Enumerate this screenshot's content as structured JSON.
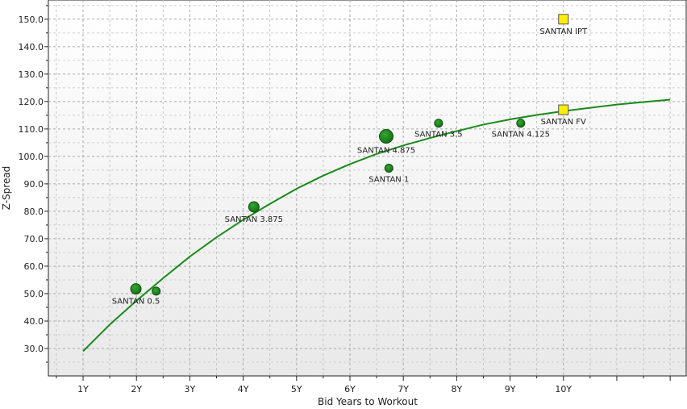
{
  "chart_data": {
    "type": "scatter",
    "xlabel": "Bid Years to Workout",
    "ylabel": "Z-Spread",
    "xlim": [
      0.35,
      12.3
    ],
    "ylim": [
      20,
      157
    ],
    "x_ticks": [
      {
        "value": 1,
        "label": "1Y"
      },
      {
        "value": 2,
        "label": "2Y"
      },
      {
        "value": 3,
        "label": "3Y"
      },
      {
        "value": 4,
        "label": "4Y"
      },
      {
        "value": 5,
        "label": "5Y"
      },
      {
        "value": 6,
        "label": "6Y"
      },
      {
        "value": 7,
        "label": "7Y"
      },
      {
        "value": 8,
        "label": "8Y"
      },
      {
        "value": 9,
        "label": "9Y"
      },
      {
        "value": 10,
        "label": "10Y"
      }
    ],
    "y_ticks": [
      {
        "value": 30,
        "label": "30.0"
      },
      {
        "value": 40,
        "label": "40.0"
      },
      {
        "value": 50,
        "label": "50.0"
      },
      {
        "value": 60,
        "label": "60.0"
      },
      {
        "value": 70,
        "label": "70.0"
      },
      {
        "value": 80,
        "label": "80.0"
      },
      {
        "value": 90,
        "label": "90.0"
      },
      {
        "value": 100,
        "label": "100.0"
      },
      {
        "value": 110,
        "label": "110.0"
      },
      {
        "value": 120,
        "label": "120.0"
      },
      {
        "value": 130,
        "label": "130.0"
      },
      {
        "value": 140,
        "label": "140.0"
      },
      {
        "value": 150,
        "label": "150.0"
      }
    ],
    "grid": true,
    "colors": {
      "bond": "#1a8a1a",
      "curve": "#1a8a1a",
      "new_issue": "#ffee00"
    },
    "bonds": [
      {
        "label": "SANTAN 0.5",
        "x": 1.99,
        "y": 51.7,
        "size": "medium"
      },
      {
        "label": "",
        "x": 2.37,
        "y": 50.9,
        "size": "small"
      },
      {
        "label": "SANTAN 3.875",
        "x": 4.2,
        "y": 81.6,
        "size": "medium"
      },
      {
        "label": "SANTAN 4.875",
        "x": 6.68,
        "y": 107.3,
        "size": "large"
      },
      {
        "label": "SANTAN 1",
        "x": 6.73,
        "y": 95.7,
        "size": "small"
      },
      {
        "label": "SANTAN 3.5",
        "x": 7.66,
        "y": 112.1,
        "size": "small"
      },
      {
        "label": "SANTAN 4.125",
        "x": 9.2,
        "y": 112.1,
        "size": "small"
      }
    ],
    "new_issue": [
      {
        "label": "SANTAN IPT",
        "x": 10.0,
        "y": 150.0
      },
      {
        "label": "SANTAN FV",
        "x": 10.0,
        "y": 117.0
      }
    ],
    "curve": {
      "x": [
        1.0,
        1.5,
        2.0,
        2.5,
        3.0,
        3.5,
        4.0,
        4.5,
        5.0,
        5.5,
        6.0,
        6.5,
        7.0,
        7.5,
        8.0,
        8.5,
        9.0,
        9.5,
        10.0,
        10.5,
        11.0,
        11.5,
        12.0
      ],
      "y": [
        29.0,
        38.7,
        47.4,
        55.6,
        63.5,
        70.5,
        76.9,
        82.7,
        88.2,
        93.0,
        97.2,
        100.9,
        104.0,
        106.7,
        109.2,
        111.6,
        113.5,
        115.1,
        116.5,
        117.7,
        118.9,
        119.8,
        120.7
      ]
    }
  }
}
